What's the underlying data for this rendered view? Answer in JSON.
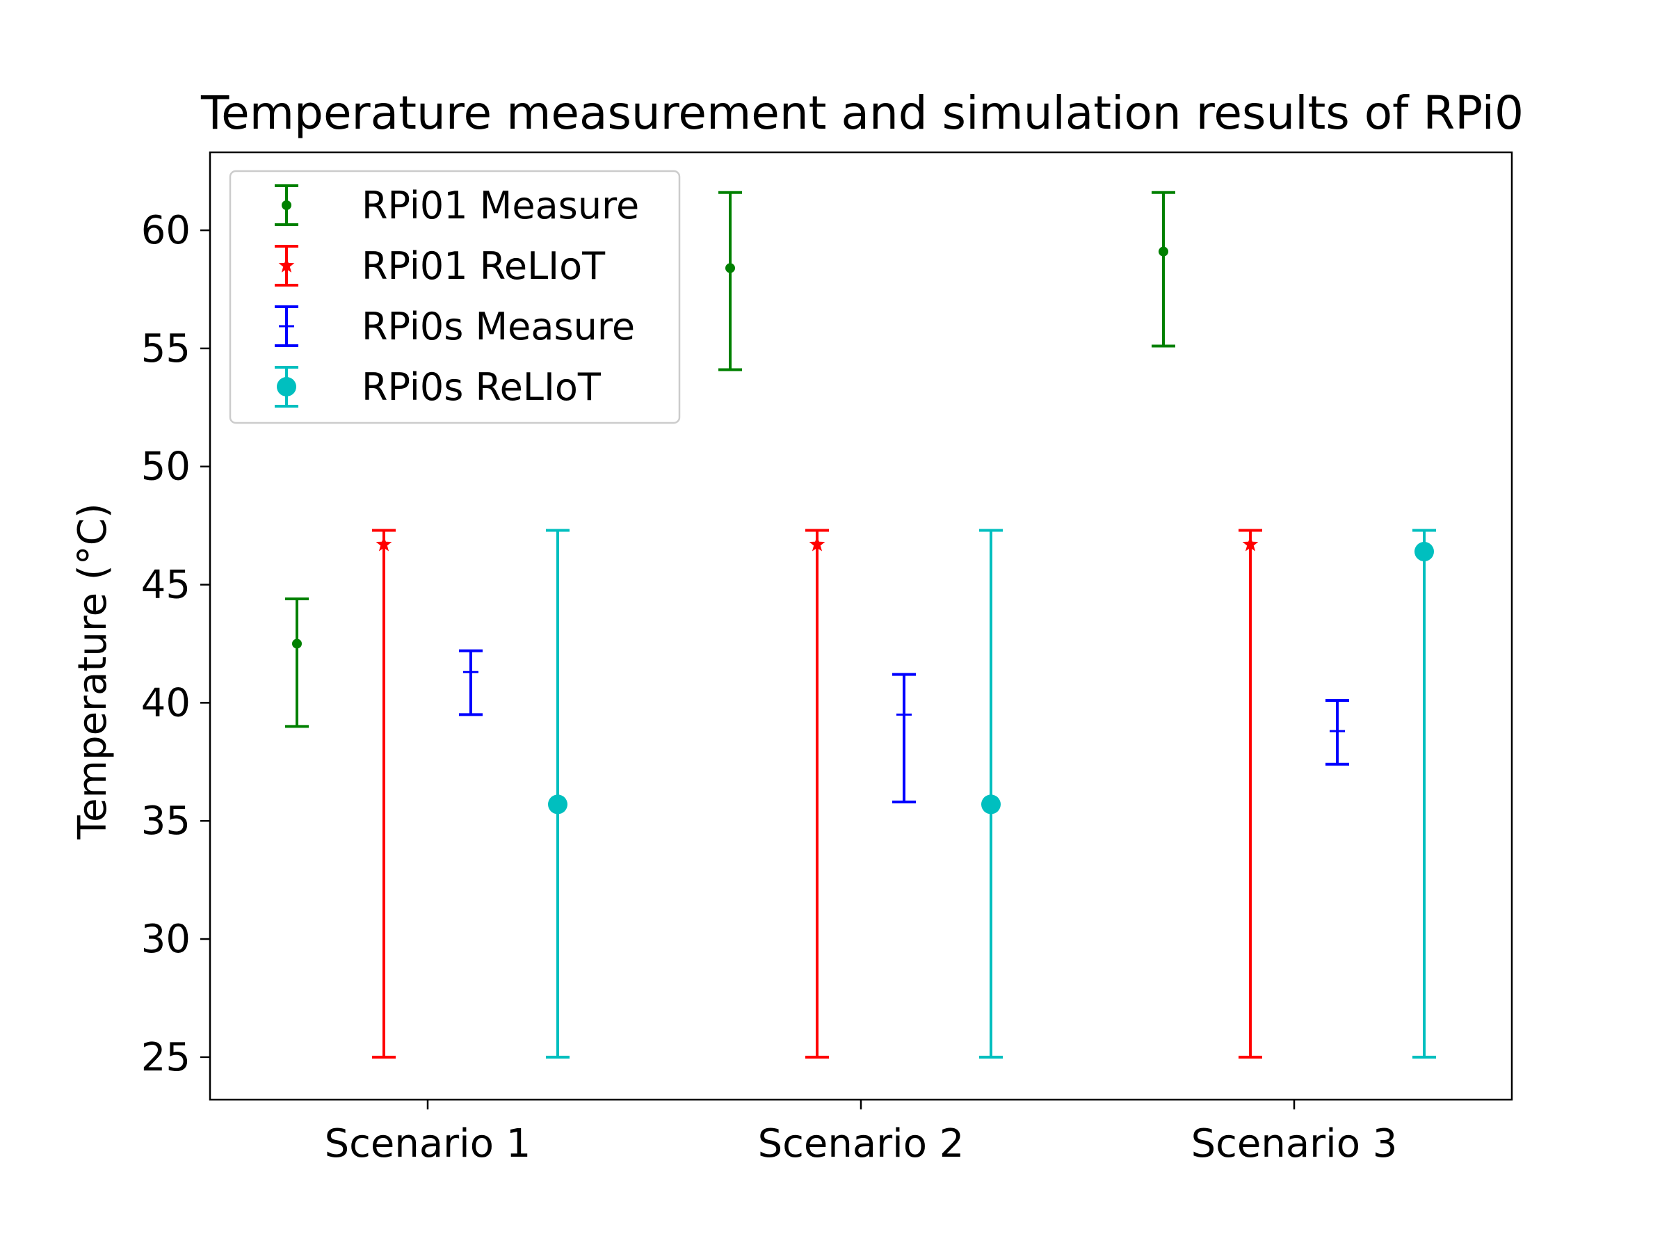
{
  "chart_data": {
    "type": "scatter",
    "title": "Temperature measurement and simulation results of RPi0",
    "xlabel": "",
    "ylabel": "Temperature (°C)",
    "categories": [
      "Scenario 1",
      "Scenario 2",
      "Scenario 3"
    ],
    "ylim": [
      23.2,
      63.3
    ],
    "yticks": [
      25,
      30,
      35,
      40,
      45,
      50,
      55,
      60
    ],
    "grid": false,
    "legend_position": "top-left",
    "series": [
      {
        "name": "RPi01 Measure",
        "color": "#008000",
        "marker": "point",
        "values": [
          42.5,
          58.4,
          59.1
        ],
        "err_low": [
          39.0,
          54.1,
          55.1
        ],
        "err_high": [
          44.4,
          61.6,
          61.6
        ]
      },
      {
        "name": "RPi01 ReLIoT",
        "color": "#ff0000",
        "marker": "star",
        "values": [
          46.7,
          46.7,
          46.7
        ],
        "err_low": [
          25.0,
          25.0,
          25.0
        ],
        "err_high": [
          47.3,
          47.3,
          47.3
        ]
      },
      {
        "name": "RPi0s Measure",
        "color": "#0000ff",
        "marker": "plus",
        "values": [
          41.3,
          39.5,
          38.8
        ],
        "err_low": [
          39.5,
          35.8,
          37.4
        ],
        "err_high": [
          42.2,
          41.2,
          40.1
        ]
      },
      {
        "name": "RPi0s ReLIoT",
        "color": "#00bfbf",
        "marker": "circle",
        "values": [
          35.7,
          35.7,
          46.4
        ],
        "err_low": [
          25.0,
          25.0,
          25.0
        ],
        "err_high": [
          47.3,
          47.3,
          47.3
        ]
      }
    ]
  }
}
